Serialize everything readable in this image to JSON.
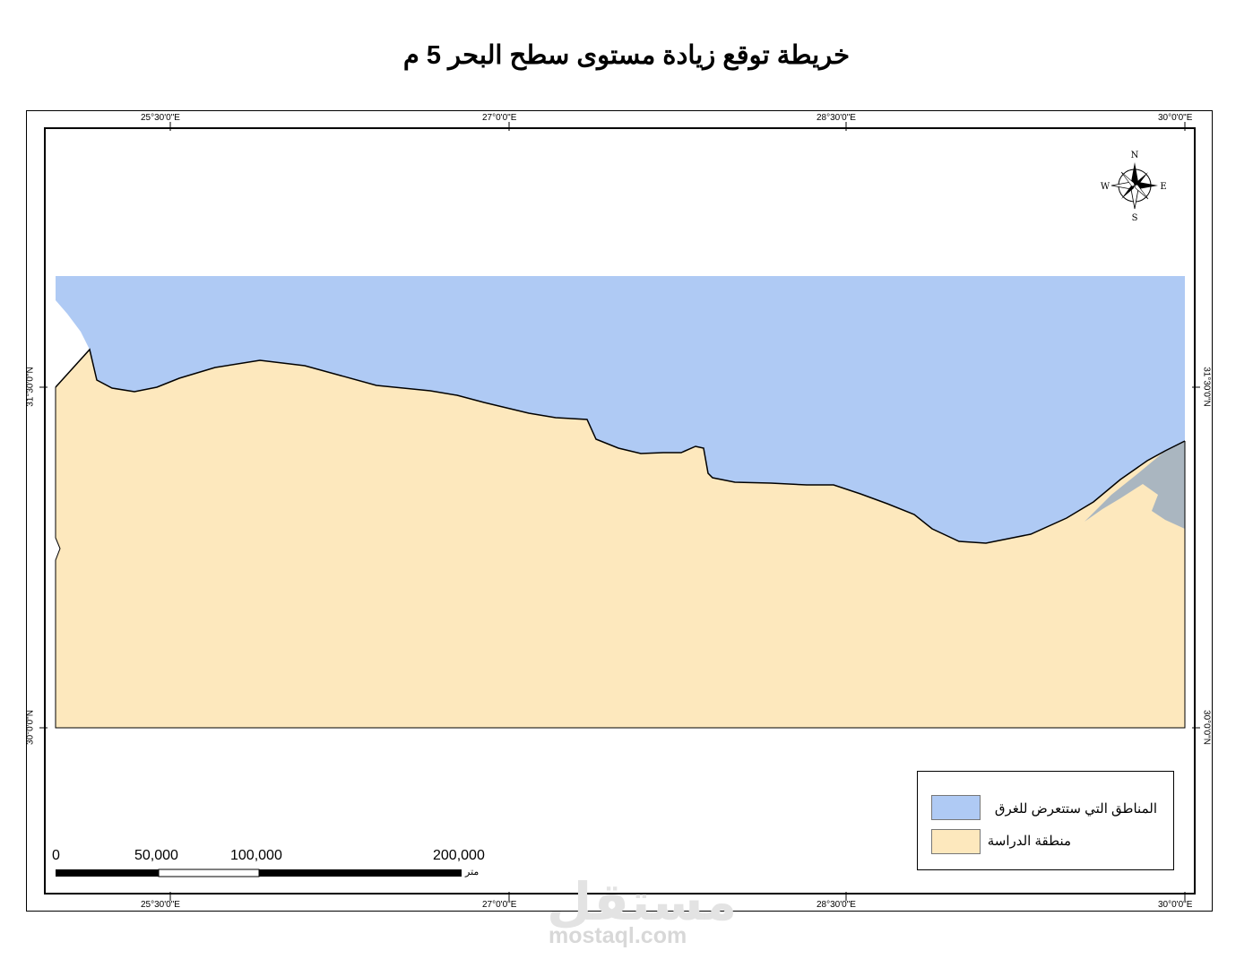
{
  "title": "خريطة توقع زيادة مستوى سطح البحر 5 م",
  "graticule": {
    "longitudes": [
      "25°30'0\"E",
      "27°0'0\"E",
      "28°30'0\"E",
      "30°0'0\"E"
    ],
    "latitudes": [
      "31°30'0\"N",
      "30°0'0\"N"
    ]
  },
  "compass": {
    "n": "N",
    "s": "S",
    "e": "E",
    "w": "W"
  },
  "legend": {
    "items": [
      {
        "label": "المناطق التي ستتعرض للغرق",
        "color": "#afcaf4"
      },
      {
        "label": "منطقة الدراسة",
        "color": "#fde8bd"
      }
    ]
  },
  "scale_bar": {
    "ticks": [
      "0",
      "50,000",
      "100,000",
      "200,000"
    ],
    "unit": "متر"
  },
  "colors": {
    "flood": "#afcaf4",
    "study_area": "#fde8bd",
    "wetland": "#aab6c0"
  },
  "watermark": {
    "text": "مستقل",
    "url": "mostaql.com"
  }
}
